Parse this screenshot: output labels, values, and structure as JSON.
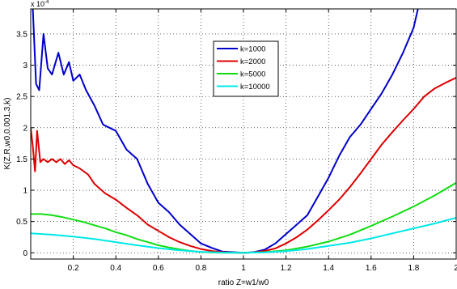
{
  "chart_data": {
    "type": "line",
    "title": "",
    "xlabel": "ratio Z=w1/w0",
    "ylabel": "K(Z,R,w0,0.001,3,k)",
    "y_exponent_label": "x 10",
    "y_exponent_power": "-4",
    "xlim": [
      0,
      2
    ],
    "ylim": [
      -0.1,
      3.9
    ],
    "x_ticks": [
      0.2,
      0.4,
      0.6,
      0.8,
      1,
      1.2,
      1.4,
      1.6,
      1.8,
      2
    ],
    "x_tick_labels": [
      "0.2",
      "0.4",
      "0.6",
      "0.8",
      "1",
      "1.2",
      "1.4",
      "1.6",
      "1.8",
      "2"
    ],
    "y_ticks": [
      0,
      0.5,
      1,
      1.5,
      2,
      2.5,
      3,
      3.5
    ],
    "y_tick_labels": [
      "0",
      "0.5",
      "1",
      "1.5",
      "2",
      "2.5",
      "3",
      "3.5"
    ],
    "grid": true,
    "legend_position": "top-center",
    "series": [
      {
        "name": "k=1000",
        "color": "#0000cc",
        "points": [
          [
            0.01,
            3.9
          ],
          [
            0.025,
            2.7
          ],
          [
            0.04,
            2.6
          ],
          [
            0.06,
            3.5
          ],
          [
            0.08,
            2.95
          ],
          [
            0.1,
            2.85
          ],
          [
            0.13,
            3.2
          ],
          [
            0.155,
            2.85
          ],
          [
            0.18,
            3.05
          ],
          [
            0.2,
            2.75
          ],
          [
            0.23,
            2.85
          ],
          [
            0.26,
            2.6
          ],
          [
            0.3,
            2.35
          ],
          [
            0.34,
            2.05
          ],
          [
            0.37,
            2.0
          ],
          [
            0.4,
            1.95
          ],
          [
            0.45,
            1.65
          ],
          [
            0.5,
            1.5
          ],
          [
            0.55,
            1.1
          ],
          [
            0.6,
            0.8
          ],
          [
            0.65,
            0.65
          ],
          [
            0.7,
            0.45
          ],
          [
            0.75,
            0.3
          ],
          [
            0.8,
            0.15
          ],
          [
            0.85,
            0.08
          ],
          [
            0.9,
            0.02
          ],
          [
            0.95,
            0.01
          ],
          [
            1.0,
            0.0
          ],
          [
            1.05,
            0.01
          ],
          [
            1.1,
            0.05
          ],
          [
            1.15,
            0.15
          ],
          [
            1.2,
            0.3
          ],
          [
            1.25,
            0.45
          ],
          [
            1.3,
            0.6
          ],
          [
            1.35,
            0.9
          ],
          [
            1.4,
            1.2
          ],
          [
            1.45,
            1.55
          ],
          [
            1.5,
            1.85
          ],
          [
            1.55,
            2.05
          ],
          [
            1.6,
            2.3
          ],
          [
            1.65,
            2.55
          ],
          [
            1.7,
            2.85
          ],
          [
            1.75,
            3.2
          ],
          [
            1.8,
            3.6
          ],
          [
            1.82,
            3.9
          ]
        ]
      },
      {
        "name": "k=2000",
        "color": "#dd0000",
        "points": [
          [
            0.0,
            2.0
          ],
          [
            0.01,
            1.7
          ],
          [
            0.02,
            1.3
          ],
          [
            0.03,
            1.95
          ],
          [
            0.045,
            1.45
          ],
          [
            0.06,
            1.5
          ],
          [
            0.08,
            1.45
          ],
          [
            0.1,
            1.5
          ],
          [
            0.12,
            1.45
          ],
          [
            0.14,
            1.5
          ],
          [
            0.16,
            1.42
          ],
          [
            0.18,
            1.48
          ],
          [
            0.2,
            1.4
          ],
          [
            0.23,
            1.35
          ],
          [
            0.27,
            1.25
          ],
          [
            0.3,
            1.1
          ],
          [
            0.35,
            0.95
          ],
          [
            0.4,
            0.85
          ],
          [
            0.45,
            0.72
          ],
          [
            0.5,
            0.6
          ],
          [
            0.55,
            0.45
          ],
          [
            0.6,
            0.35
          ],
          [
            0.65,
            0.25
          ],
          [
            0.7,
            0.17
          ],
          [
            0.75,
            0.11
          ],
          [
            0.8,
            0.06
          ],
          [
            0.85,
            0.03
          ],
          [
            0.9,
            0.01
          ],
          [
            0.95,
            0.003
          ],
          [
            1.0,
            0.0
          ],
          [
            1.05,
            0.005
          ],
          [
            1.1,
            0.03
          ],
          [
            1.15,
            0.07
          ],
          [
            1.2,
            0.15
          ],
          [
            1.25,
            0.25
          ],
          [
            1.3,
            0.37
          ],
          [
            1.35,
            0.52
          ],
          [
            1.4,
            0.68
          ],
          [
            1.45,
            0.85
          ],
          [
            1.5,
            1.05
          ],
          [
            1.55,
            1.27
          ],
          [
            1.6,
            1.5
          ],
          [
            1.65,
            1.73
          ],
          [
            1.7,
            1.93
          ],
          [
            1.75,
            2.12
          ],
          [
            1.8,
            2.3
          ],
          [
            1.85,
            2.5
          ],
          [
            1.9,
            2.63
          ],
          [
            1.95,
            2.72
          ],
          [
            2.0,
            2.8
          ]
        ]
      },
      {
        "name": "k=5000",
        "color": "#11dd11",
        "points": [
          [
            0.0,
            0.62
          ],
          [
            0.05,
            0.62
          ],
          [
            0.1,
            0.6
          ],
          [
            0.15,
            0.57
          ],
          [
            0.2,
            0.53
          ],
          [
            0.25,
            0.49
          ],
          [
            0.3,
            0.44
          ],
          [
            0.35,
            0.39
          ],
          [
            0.4,
            0.33
          ],
          [
            0.45,
            0.28
          ],
          [
            0.5,
            0.22
          ],
          [
            0.55,
            0.17
          ],
          [
            0.6,
            0.12
          ],
          [
            0.65,
            0.085
          ],
          [
            0.7,
            0.055
          ],
          [
            0.75,
            0.03
          ],
          [
            0.8,
            0.014
          ],
          [
            0.85,
            0.005
          ],
          [
            0.9,
            0.001
          ],
          [
            1.0,
            0.0
          ],
          [
            1.1,
            0.01
          ],
          [
            1.2,
            0.04
          ],
          [
            1.3,
            0.1
          ],
          [
            1.4,
            0.18
          ],
          [
            1.5,
            0.29
          ],
          [
            1.6,
            0.43
          ],
          [
            1.7,
            0.58
          ],
          [
            1.8,
            0.74
          ],
          [
            1.9,
            0.92
          ],
          [
            2.0,
            1.12
          ]
        ]
      },
      {
        "name": "k=10000",
        "color": "#00e8e8",
        "points": [
          [
            0.0,
            0.31
          ],
          [
            0.1,
            0.29
          ],
          [
            0.2,
            0.26
          ],
          [
            0.3,
            0.22
          ],
          [
            0.4,
            0.17
          ],
          [
            0.5,
            0.12
          ],
          [
            0.6,
            0.075
          ],
          [
            0.7,
            0.04
          ],
          [
            0.8,
            0.015
          ],
          [
            0.9,
            0.003
          ],
          [
            1.0,
            0.0
          ],
          [
            1.1,
            0.006
          ],
          [
            1.2,
            0.025
          ],
          [
            1.3,
            0.06
          ],
          [
            1.4,
            0.11
          ],
          [
            1.5,
            0.16
          ],
          [
            1.6,
            0.23
          ],
          [
            1.7,
            0.31
          ],
          [
            1.8,
            0.39
          ],
          [
            1.9,
            0.47
          ],
          [
            2.0,
            0.56
          ]
        ]
      }
    ]
  }
}
